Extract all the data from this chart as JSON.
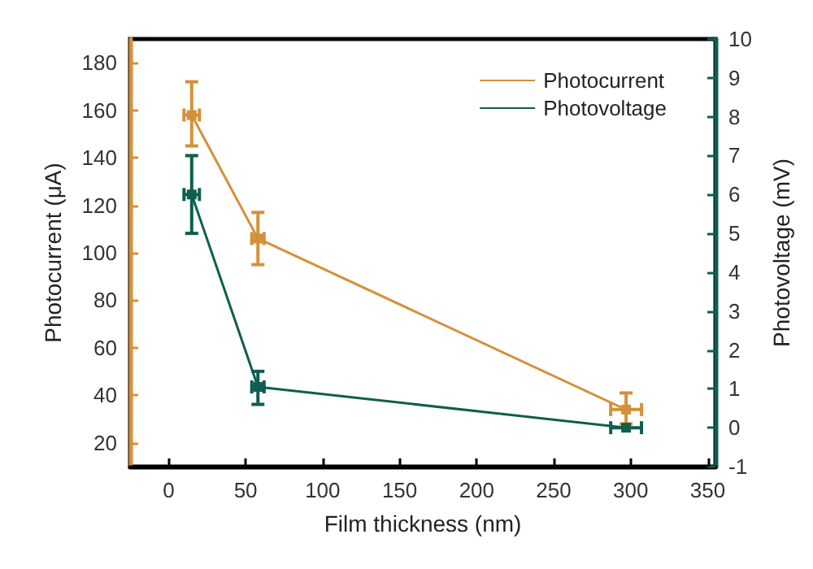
{
  "chart_data": {
    "type": "line",
    "xlabel": "Film thickness (nm)",
    "ylabel": "Photocurrent (μA)",
    "y2label": "Photovoltage (mV)",
    "xlim": [
      -25,
      355
    ],
    "xticks": [
      0,
      50,
      100,
      150,
      200,
      250,
      300,
      350
    ],
    "ylim": [
      10,
      190
    ],
    "yticks": [
      20,
      40,
      60,
      80,
      100,
      120,
      140,
      160,
      180
    ],
    "y2lim": [
      -1,
      10
    ],
    "y2ticks": [
      -1,
      0,
      1,
      2,
      3,
      4,
      5,
      6,
      7,
      8,
      9,
      10
    ],
    "x": [
      15,
      58,
      297
    ],
    "marker": "square",
    "line_style": "solid",
    "grid": false,
    "legend": "top right",
    "series": [
      {
        "name": "Photocurrent",
        "color": "#d4913a",
        "values": [
          158,
          106,
          34
        ],
        "errors": [
          [
            145,
            172
          ],
          [
            95,
            117
          ],
          [
            28,
            41
          ]
        ],
        "xerrors": [
          5,
          4,
          10
        ]
      },
      {
        "name": "Photovoltage",
        "color": "#0f5e4f",
        "axis": "y2",
        "values": [
          6.0,
          1.05,
          0
        ],
        "errors": [
          [
            5.0,
            7.0
          ],
          [
            0.6,
            1.45
          ],
          null
        ],
        "xerrors": [
          5,
          4,
          10
        ]
      }
    ]
  }
}
